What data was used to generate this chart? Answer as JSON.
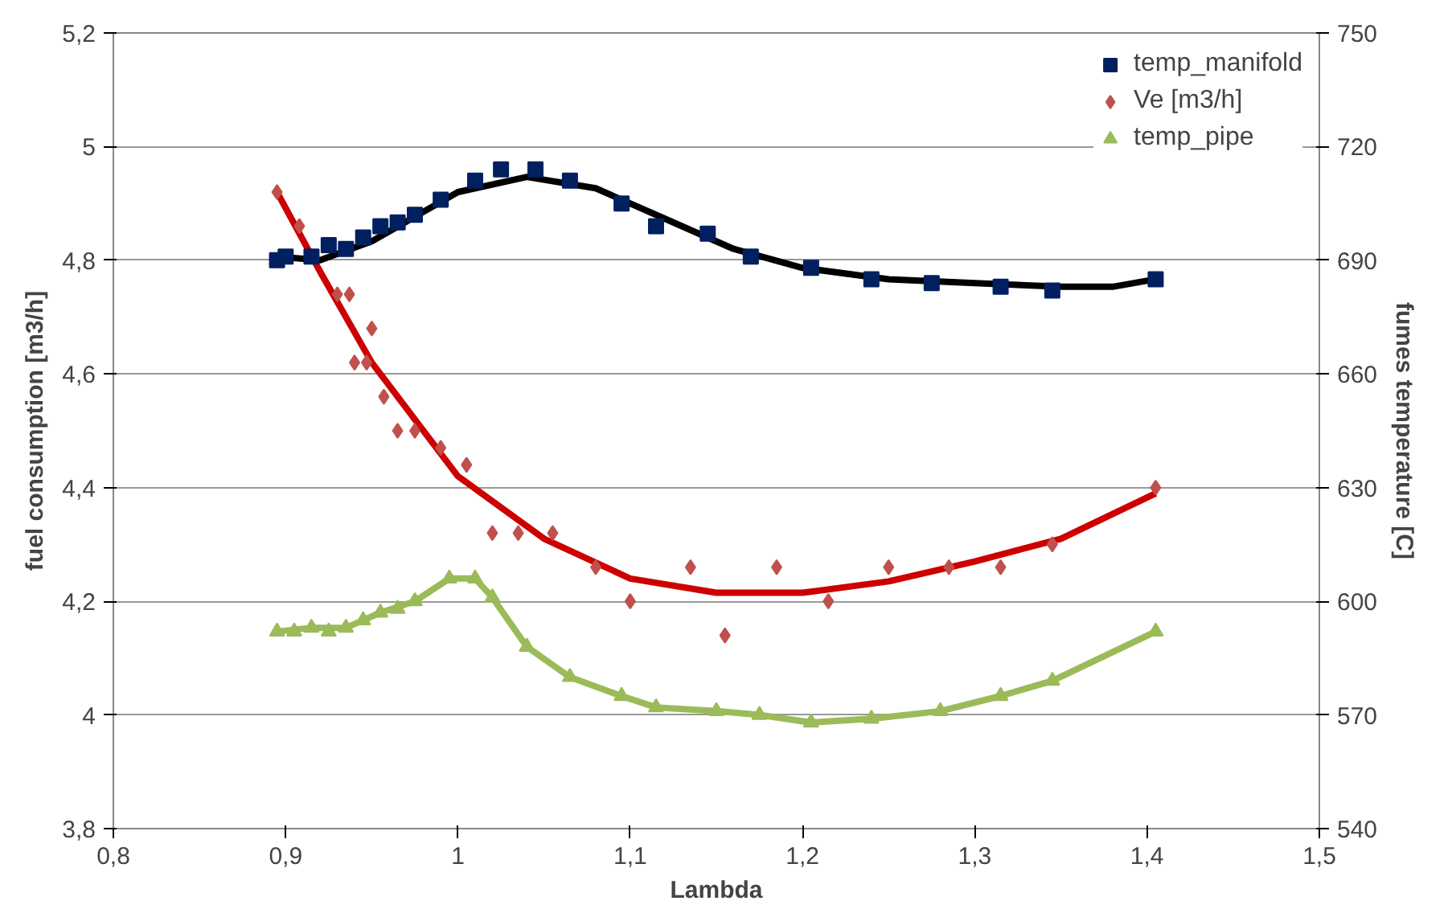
{
  "chart_data": {
    "type": "scatter",
    "xlabel": "Lambda",
    "ylabel": "fuel consumption [m3/h]",
    "y2label": "fumes temperature [C]",
    "xlim": [
      0.8,
      1.5
    ],
    "xticks": [
      {
        "value": 0.8,
        "label": "0,8"
      },
      {
        "value": 0.9,
        "label": "0,9"
      },
      1,
      {
        "value": 1.1,
        "label": "1,1"
      },
      {
        "value": 1.2,
        "label": "1,2"
      },
      {
        "value": 1.3,
        "label": "1,3"
      },
      {
        "value": 1.4,
        "label": "1,4"
      },
      {
        "value": 1.5,
        "label": "1,5"
      }
    ],
    "ylim": [
      3.8,
      5.2
    ],
    "yticks": [
      {
        "value": 3.8,
        "label": "3,8"
      },
      4,
      {
        "value": 4.2,
        "label": "4,2"
      },
      {
        "value": 4.4,
        "label": "4,4"
      },
      {
        "value": 4.6,
        "label": "4,6"
      },
      {
        "value": 4.8,
        "label": "4,8"
      },
      5,
      {
        "value": 5.2,
        "label": "5,2"
      }
    ],
    "y2lim": [
      540,
      750
    ],
    "y2ticks": [
      540,
      570,
      600,
      630,
      660,
      690,
      720,
      750
    ],
    "grid": "y",
    "legend": "top right",
    "series": [
      {
        "name": "temp_manifold",
        "marker": "square",
        "axis": "y2",
        "color": "#002060",
        "x": [
          0.895,
          0.9,
          0.915,
          0.925,
          0.935,
          0.945,
          0.955,
          0.965,
          0.975,
          0.99,
          1.01,
          1.025,
          1.045,
          1.065,
          1.095,
          1.115,
          1.145,
          1.17,
          1.205,
          1.24,
          1.275,
          1.315,
          1.345,
          1.405
        ],
        "values": [
          690,
          691,
          691,
          694,
          693,
          696,
          699,
          700,
          702,
          706,
          711,
          714,
          714,
          711,
          705,
          699,
          697,
          691,
          688,
          685,
          684,
          683,
          682,
          685
        ]
      },
      {
        "name": "Ve [m3/h]",
        "marker": "diamond",
        "color": "#c0504d",
        "x": [
          0.895,
          0.908,
          0.93,
          0.937,
          0.94,
          0.947,
          0.95,
          0.957,
          0.965,
          0.975,
          0.99,
          1.005,
          1.02,
          1.035,
          1.055,
          1.08,
          1.1,
          1.135,
          1.155,
          1.185,
          1.215,
          1.25,
          1.285,
          1.315,
          1.345,
          1.405
        ],
        "values": [
          4.92,
          4.86,
          4.74,
          4.74,
          4.62,
          4.62,
          4.68,
          4.56,
          4.5,
          4.5,
          4.47,
          4.44,
          4.32,
          4.32,
          4.32,
          4.26,
          4.2,
          4.26,
          4.14,
          4.26,
          4.2,
          4.26,
          4.26,
          4.26,
          4.3,
          4.4
        ]
      },
      {
        "name": "temp_pipe",
        "marker": "triangle",
        "axis": "y2",
        "color": "#9bbb59",
        "x": [
          0.895,
          0.905,
          0.915,
          0.925,
          0.935,
          0.945,
          0.955,
          0.965,
          0.975,
          0.995,
          1.01,
          1.02,
          1.04,
          1.065,
          1.095,
          1.115,
          1.15,
          1.175,
          1.205,
          1.24,
          1.28,
          1.315,
          1.345,
          1.405
        ],
        "values": [
          592,
          592,
          593,
          592,
          593,
          595,
          597,
          598,
          600,
          606,
          606,
          601,
          588,
          580,
          575,
          572,
          571,
          570,
          568,
          569,
          571,
          575,
          579,
          592
        ]
      },
      {
        "type": "line",
        "axis": "y2",
        "color": "#000000",
        "x": [
          0.895,
          0.92,
          0.95,
          1.0,
          1.04,
          1.08,
          1.12,
          1.16,
          1.2,
          1.25,
          1.3,
          1.35,
          1.38,
          1.405
        ],
        "values": [
          691,
          690,
          695,
          708,
          712,
          709,
          701,
          693,
          688,
          685,
          684,
          683,
          683,
          685
        ]
      },
      {
        "type": "line",
        "color": "#cc0000",
        "x": [
          0.895,
          0.92,
          0.95,
          1.0,
          1.05,
          1.1,
          1.15,
          1.2,
          1.25,
          1.3,
          1.35,
          1.405
        ],
        "values": [
          4.92,
          4.78,
          4.62,
          4.42,
          4.31,
          4.24,
          4.215,
          4.215,
          4.235,
          4.27,
          4.31,
          4.39
        ]
      },
      {
        "type": "line",
        "axis": "y2",
        "color": "#9bbb59",
        "x": [
          0.895,
          0.915,
          0.935,
          0.955,
          0.975,
          0.995,
          1.01,
          1.02,
          1.04,
          1.065,
          1.095,
          1.115,
          1.15,
          1.175,
          1.205,
          1.24,
          1.28,
          1.315,
          1.345,
          1.405
        ],
        "values": [
          592,
          593,
          593,
          597,
          600,
          606,
          606,
          601,
          588,
          580,
          575,
          572,
          571,
          570,
          568,
          569,
          571,
          575,
          579,
          592
        ]
      }
    ]
  }
}
